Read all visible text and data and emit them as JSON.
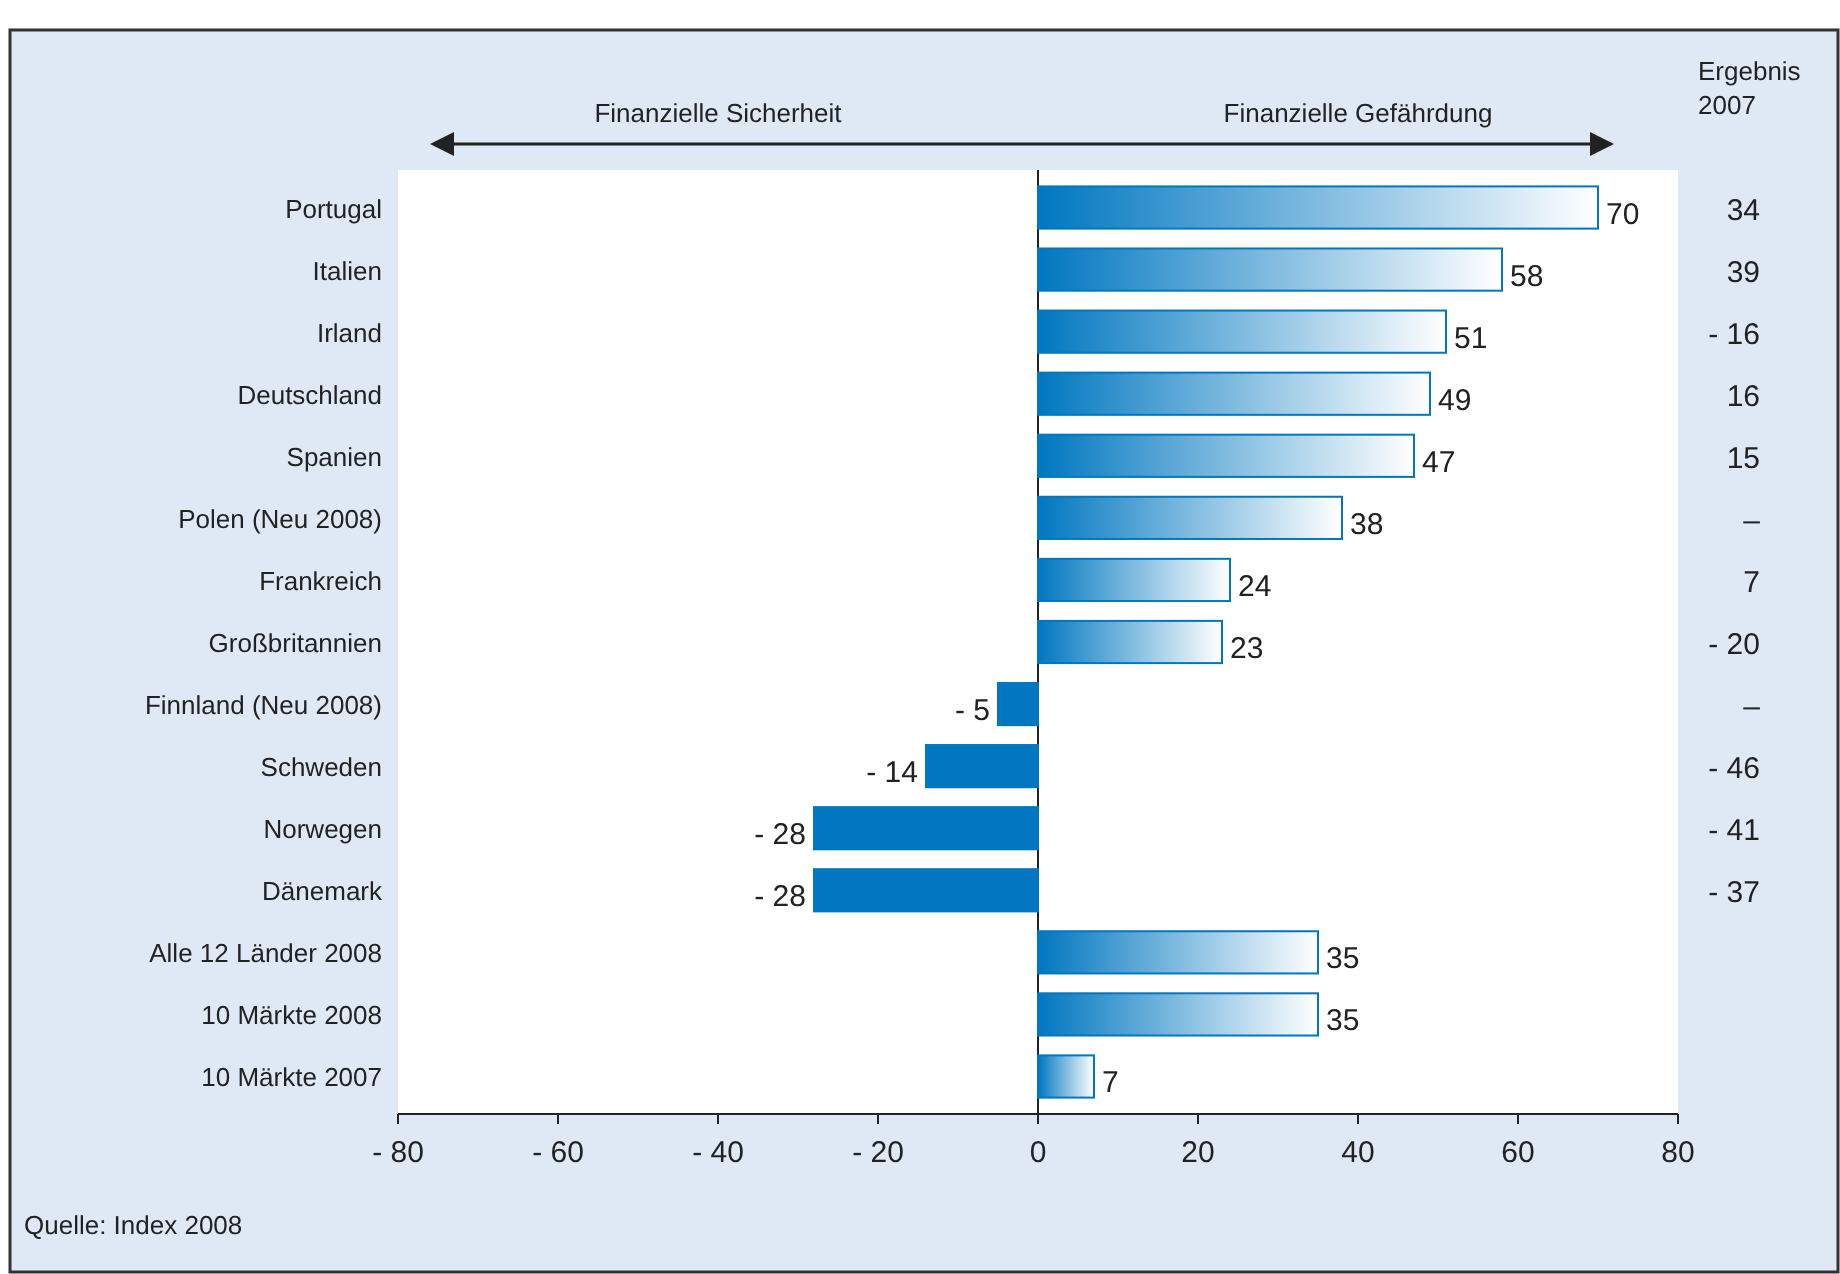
{
  "chart_data": {
    "type": "bar",
    "orientation": "horizontal",
    "categories": [
      "Portugal",
      "Italien",
      "Irland",
      "Deutschland",
      "Spanien",
      "Polen (Neu 2008)",
      "Frankreich",
      "Großbritannien",
      "Finnland (Neu 2008)",
      "Schweden",
      "Norwegen",
      "Dänemark",
      "Alle 12 Länder 2008",
      "10 Märkte 2008",
      "10 Märkte 2007"
    ],
    "values": [
      70,
      58,
      51,
      49,
      47,
      38,
      24,
      23,
      -5,
      -14,
      -28,
      -28,
      35,
      35,
      7
    ],
    "value_labels": [
      "70",
      "58",
      "51",
      "49",
      "47",
      "38",
      "24",
      "23",
      "- 5",
      "- 14",
      "- 28",
      "- 28",
      "35",
      "35",
      "7"
    ],
    "color": "#0077c0",
    "xlim": [
      -80,
      80
    ],
    "xticks": [
      {
        "value": -80,
        "label": "- 80"
      },
      {
        "value": -60,
        "label": "- 60"
      },
      {
        "value": -40,
        "label": "- 40"
      },
      {
        "value": -20,
        "label": "- 20"
      },
      0,
      20,
      40,
      60,
      80
    ],
    "annotations": [
      "Finanzielle Sicherheit",
      "Finanzielle Gefährdung",
      "Ergebnis 2007",
      "34",
      "39",
      "- 16",
      "16",
      "15",
      "–",
      "7",
      "- 20",
      "–",
      "- 46",
      "- 41",
      "- 37",
      "Quelle: Index 2008"
    ]
  }
}
